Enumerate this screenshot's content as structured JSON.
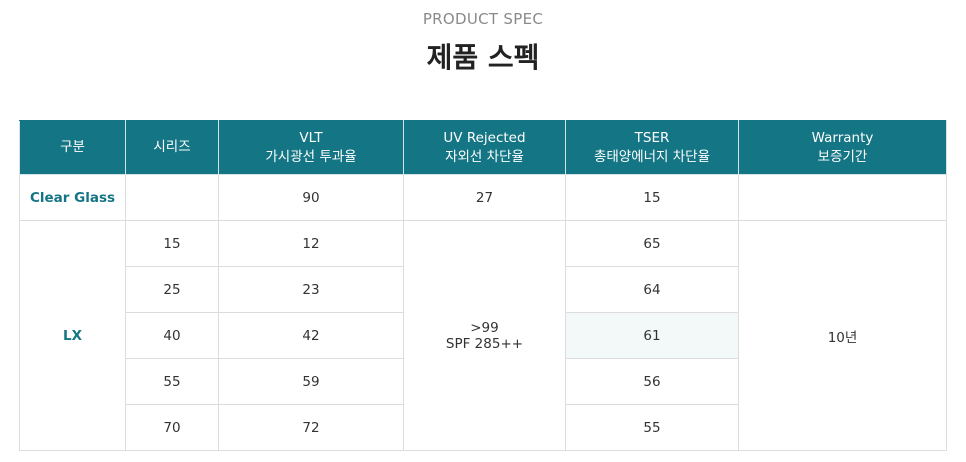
{
  "header": {
    "subtitle": "PRODUCT SPEC",
    "title": "제품 스펙"
  },
  "table": {
    "columns": [
      {
        "line1": "구분",
        "line2": ""
      },
      {
        "line1": "시리즈",
        "line2": ""
      },
      {
        "line1": "VLT",
        "line2": "가시광선 투과율"
      },
      {
        "line1": "UV Rejected",
        "line2": "자외선 차단율"
      },
      {
        "line1": "TSER",
        "line2": "총태양에너지 차단율"
      },
      {
        "line1": "Warranty",
        "line2": "보증기간"
      }
    ],
    "clear_glass": {
      "label": "Clear Glass",
      "series": "",
      "vlt": "90",
      "uv": "27",
      "tser": "15",
      "warranty": ""
    },
    "lx": {
      "label": "LX",
      "uv_line1": ">99",
      "uv_line2": "SPF 285++",
      "warranty": "10년",
      "rows": [
        {
          "series": "15",
          "vlt": "12",
          "tser": "65"
        },
        {
          "series": "25",
          "vlt": "23",
          "tser": "64"
        },
        {
          "series": "40",
          "vlt": "42",
          "tser": "61"
        },
        {
          "series": "55",
          "vlt": "59",
          "tser": "56"
        },
        {
          "series": "70",
          "vlt": "72",
          "tser": "55"
        }
      ]
    }
  },
  "colors": {
    "header_bg": "#147584",
    "label_text": "#147584",
    "highlight_cell": "#f3f8f8"
  }
}
